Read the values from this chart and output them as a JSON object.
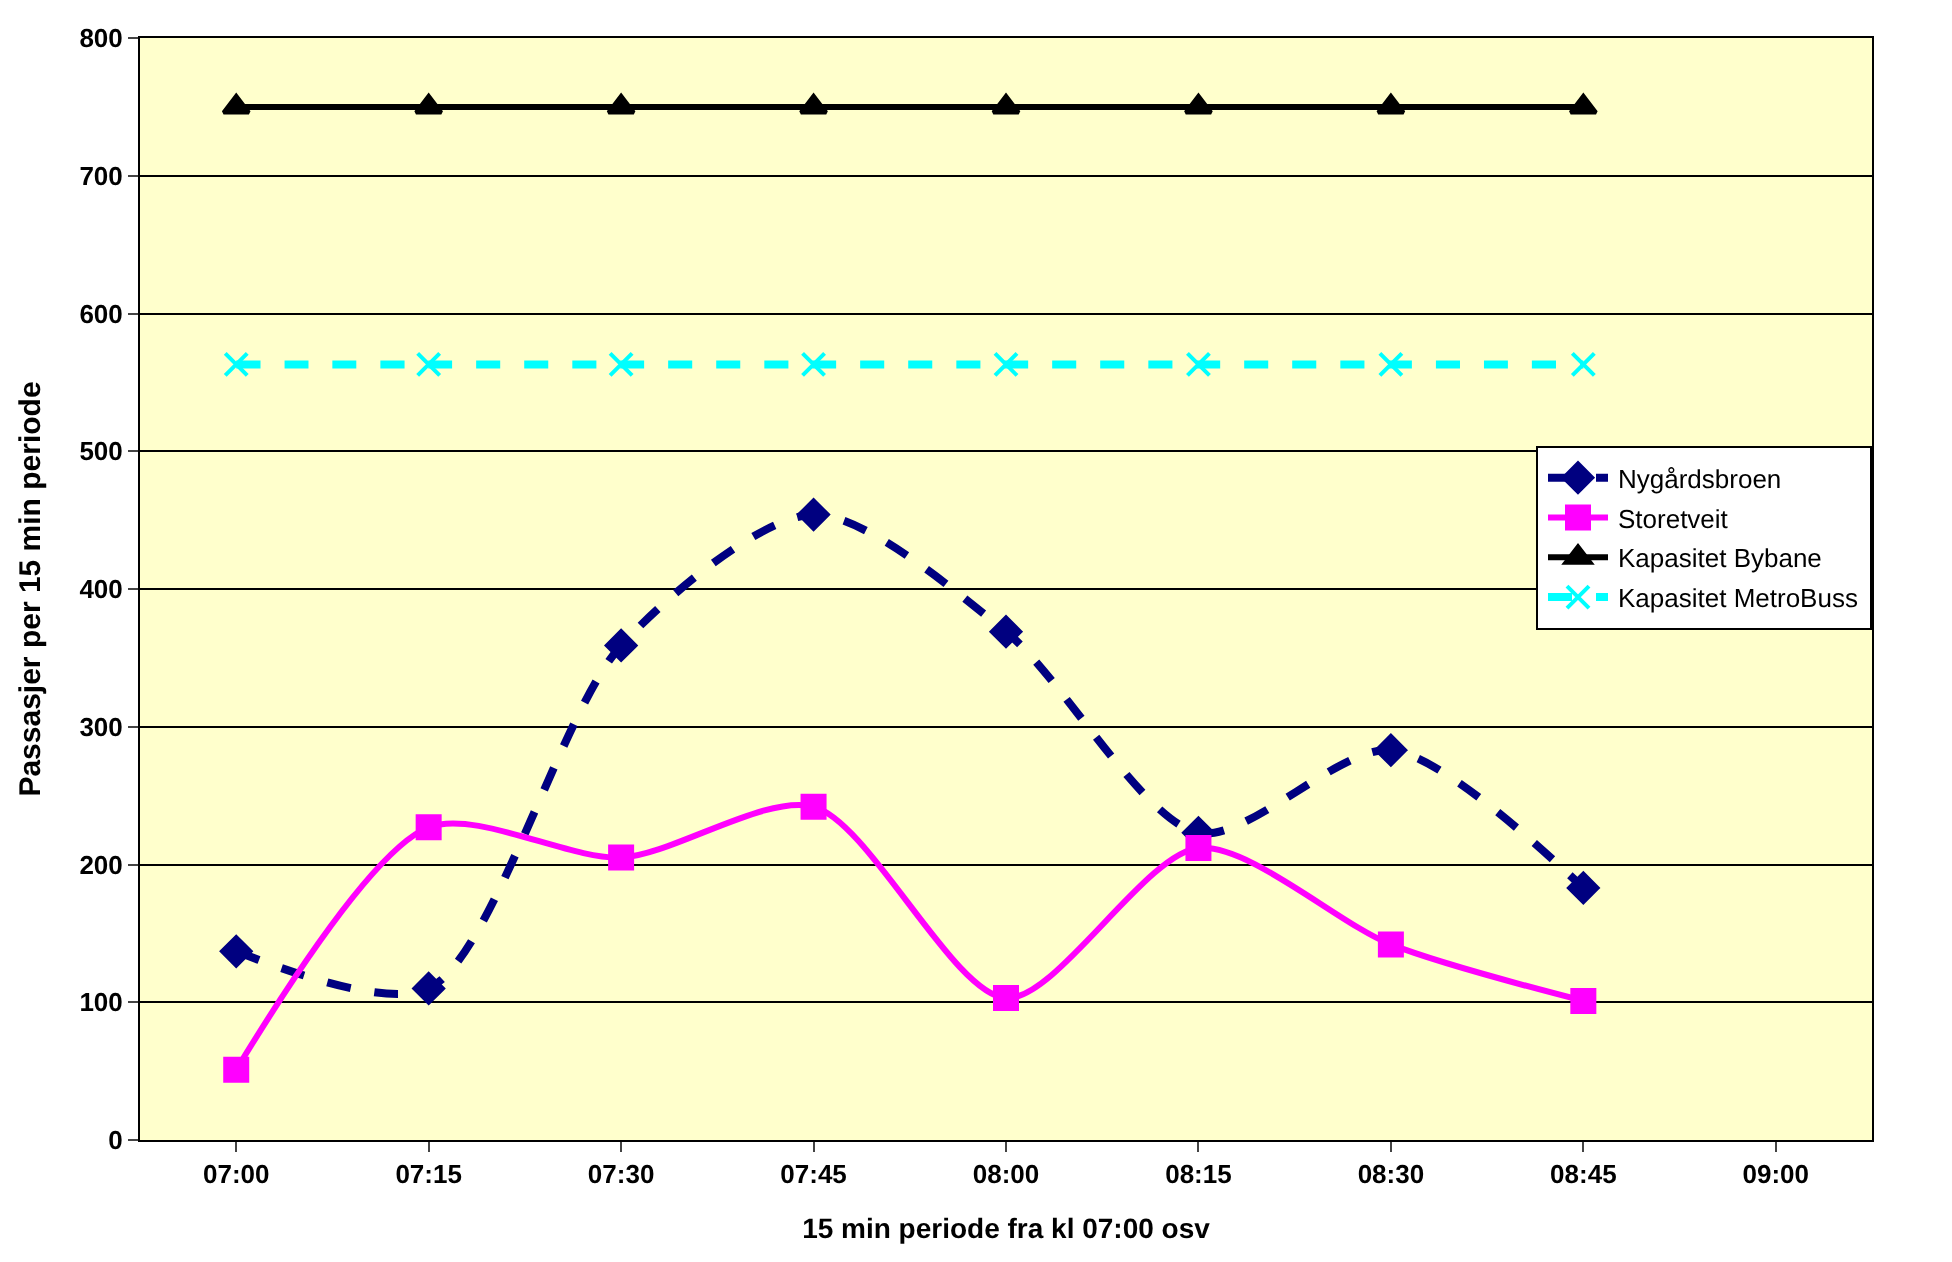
{
  "chart_data": {
    "type": "line",
    "xlabel": "15 min periode fra kl 07:00 osv",
    "ylabel": "Passasjer per 15 min periode",
    "categories": [
      "07:00",
      "07:15",
      "07:30",
      "07:45",
      "08:00",
      "08:15",
      "08:30",
      "08:45",
      "09:00"
    ],
    "ylim": [
      0,
      800
    ],
    "yticks": [
      0,
      100,
      200,
      300,
      400,
      500,
      600,
      700,
      800
    ],
    "grid": "y",
    "legend": "top right",
    "series": [
      {
        "name": "Nygårdsbroen",
        "color": "#000080",
        "marker": "diamond",
        "line_style": "dashed",
        "values": [
          137,
          110,
          359,
          454,
          369,
          223,
          283,
          183,
          null
        ]
      },
      {
        "name": "Storetveit",
        "color": "#ff00ff",
        "marker": "square",
        "line_style": "solid",
        "values": [
          51,
          227,
          205,
          242,
          103,
          212,
          142,
          101,
          null
        ]
      },
      {
        "name": "Kapasitet Bybane",
        "color": "#000000",
        "marker": "triangle",
        "line_style": "solid",
        "values": [
          750,
          750,
          750,
          750,
          750,
          750,
          750,
          750,
          null
        ]
      },
      {
        "name": "Kapasitet MetroBuss",
        "color": "#00ffff",
        "marker": "cross",
        "line_style": "dashed",
        "values": [
          563,
          563,
          563,
          563,
          563,
          563,
          563,
          563,
          null
        ]
      }
    ]
  }
}
